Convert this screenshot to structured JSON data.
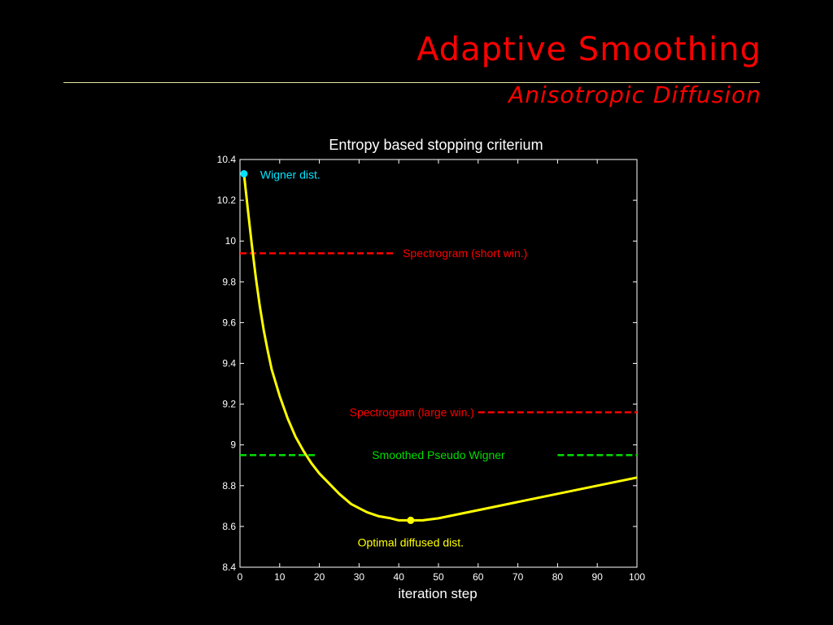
{
  "slide": {
    "title": "Adaptive Smoothing",
    "subtitle": "Anisotropic Diffusion"
  },
  "colors": {
    "background": "#000000",
    "title": "#ff0000",
    "curve": "#ffff00",
    "wigner": "#00e5ff",
    "spectrogram": "#ff0000",
    "smoothed": "#00dd00",
    "axes": "#ffffff"
  },
  "chart_data": {
    "type": "line",
    "title": "Entropy based stopping criterium",
    "xlabel": "iteration step",
    "ylabel": "",
    "xlim": [
      0,
      100
    ],
    "ylim": [
      8.4,
      10.4
    ],
    "x_ticks": [
      0,
      10,
      20,
      30,
      40,
      50,
      60,
      70,
      80,
      90,
      100
    ],
    "y_ticks": [
      8.4,
      8.6,
      8.8,
      9,
      9.2,
      9.4,
      9.6,
      9.8,
      10,
      10.2,
      10.4
    ],
    "grid": false,
    "series": [
      {
        "x": [
          1,
          2,
          3,
          4,
          5,
          6,
          7,
          8,
          10,
          12,
          14,
          16,
          18,
          20,
          22,
          25,
          28,
          30,
          32,
          35,
          38,
          40,
          43,
          46,
          50,
          55,
          60,
          65,
          70,
          75,
          80,
          85,
          90,
          95,
          100
        ],
        "values": [
          10.33,
          10.15,
          9.98,
          9.82,
          9.68,
          9.56,
          9.46,
          9.37,
          9.24,
          9.13,
          9.04,
          8.97,
          8.91,
          8.86,
          8.82,
          8.76,
          8.71,
          8.69,
          8.67,
          8.65,
          8.64,
          8.63,
          8.63,
          8.63,
          8.64,
          8.66,
          8.68,
          8.7,
          8.72,
          8.74,
          8.76,
          8.78,
          8.8,
          8.82,
          8.84
        ]
      }
    ],
    "reference_lines": [
      {
        "label": "Spectrogram (short win.)",
        "y": 9.94,
        "style": "dashed",
        "color_key": "spectrogram"
      },
      {
        "label": "Spectrogram (large win.)",
        "y": 9.16,
        "style": "dashed",
        "color_key": "spectrogram"
      },
      {
        "label": "Smoothed Pseudo Wigner",
        "y": 8.95,
        "style": "dashed",
        "color_key": "smoothed"
      }
    ],
    "markers": [
      {
        "label": "Wigner dist.",
        "x": 1,
        "y": 10.33,
        "color_key": "wigner"
      },
      {
        "label": "Optimal diffused dist.",
        "x": 43,
        "y": 8.63,
        "color_key": "curve"
      }
    ]
  }
}
